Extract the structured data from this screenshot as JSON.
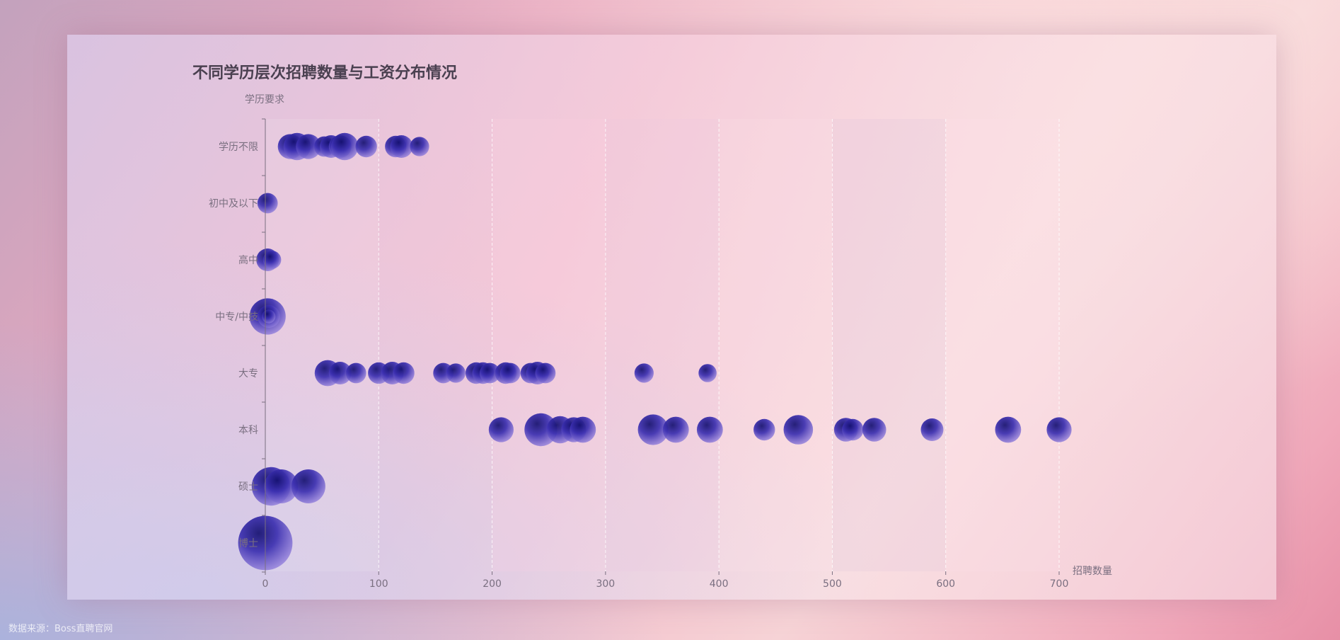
{
  "source_label": "数据来源：Boss直聘官网",
  "chart_data": {
    "type": "scatter",
    "title": "不同学历层次招聘数量与工资分布情况",
    "xlabel": "招聘数量",
    "ylabel": "学历要求",
    "xlim": [
      0,
      700
    ],
    "xticks": [
      0,
      100,
      200,
      300,
      400,
      500,
      600,
      700
    ],
    "categories": [
      "学历不限",
      "初中及以下",
      "高中",
      "中专/中技",
      "大专",
      "本科",
      "硕士",
      "博士"
    ],
    "grid": "vertical bands",
    "bubble_color": "#1e1b8f",
    "series": [
      {
        "points": [
          {
            "category": "学历不限",
            "x": 22,
            "s": 1.1
          },
          {
            "category": "学历不限",
            "x": 28,
            "s": 1.2
          },
          {
            "category": "学历不限",
            "x": 38,
            "s": 1.1
          },
          {
            "category": "学历不限",
            "x": 52,
            "s": 0.9
          },
          {
            "category": "学历不限",
            "x": 58,
            "s": 1.0
          },
          {
            "category": "学历不限",
            "x": 66,
            "s": 1.0
          },
          {
            "category": "学历不限",
            "x": 70,
            "s": 1.2
          },
          {
            "category": "学历不限",
            "x": 89,
            "s": 0.95
          },
          {
            "category": "学历不限",
            "x": 115,
            "s": 0.95
          },
          {
            "category": "学历不限",
            "x": 120,
            "s": 1.0
          },
          {
            "category": "学历不限",
            "x": 136,
            "s": 0.85
          },
          {
            "category": "初中及以下",
            "x": 2,
            "s": 0.9
          },
          {
            "category": "高中",
            "x": 2,
            "s": 1.0
          },
          {
            "category": "高中",
            "x": 6,
            "s": 0.8
          },
          {
            "category": "中专/中技",
            "x": 2,
            "s": 1.6
          },
          {
            "category": "中专/中技",
            "x": 3,
            "s": 1.0
          },
          {
            "category": "中专/中技",
            "x": 3,
            "s": 0.6
          },
          {
            "category": "大专",
            "x": 55,
            "s": 1.15
          },
          {
            "category": "大专",
            "x": 66,
            "s": 1.0
          },
          {
            "category": "大专",
            "x": 80,
            "s": 0.9
          },
          {
            "category": "大专",
            "x": 100,
            "s": 0.95
          },
          {
            "category": "大专",
            "x": 112,
            "s": 1.0
          },
          {
            "category": "大专",
            "x": 122,
            "s": 0.95
          },
          {
            "category": "大专",
            "x": 157,
            "s": 0.9
          },
          {
            "category": "大专",
            "x": 168,
            "s": 0.85
          },
          {
            "category": "大专",
            "x": 186,
            "s": 0.95
          },
          {
            "category": "大专",
            "x": 192,
            "s": 0.95
          },
          {
            "category": "大专",
            "x": 198,
            "s": 0.9
          },
          {
            "category": "大专",
            "x": 212,
            "s": 0.95
          },
          {
            "category": "大专",
            "x": 216,
            "s": 0.9
          },
          {
            "category": "大专",
            "x": 234,
            "s": 0.9
          },
          {
            "category": "大专",
            "x": 240,
            "s": 1.0
          },
          {
            "category": "大专",
            "x": 247,
            "s": 0.9
          },
          {
            "category": "大专",
            "x": 334,
            "s": 0.85
          },
          {
            "category": "大专",
            "x": 390,
            "s": 0.8
          },
          {
            "category": "本科",
            "x": 208,
            "s": 1.1
          },
          {
            "category": "本科",
            "x": 243,
            "s": 1.45
          },
          {
            "category": "本科",
            "x": 260,
            "s": 1.2
          },
          {
            "category": "本科",
            "x": 272,
            "s": 1.1
          },
          {
            "category": "本科",
            "x": 280,
            "s": 1.15
          },
          {
            "category": "本科",
            "x": 342,
            "s": 1.35
          },
          {
            "category": "本科",
            "x": 362,
            "s": 1.15
          },
          {
            "category": "本科",
            "x": 392,
            "s": 1.15
          },
          {
            "category": "本科",
            "x": 440,
            "s": 0.95
          },
          {
            "category": "本科",
            "x": 470,
            "s": 1.3
          },
          {
            "category": "本科",
            "x": 512,
            "s": 1.05
          },
          {
            "category": "本科",
            "x": 518,
            "s": 0.95
          },
          {
            "category": "本科",
            "x": 537,
            "s": 1.05
          },
          {
            "category": "本科",
            "x": 588,
            "s": 1.0
          },
          {
            "category": "本科",
            "x": 655,
            "s": 1.15
          },
          {
            "category": "本科",
            "x": 700,
            "s": 1.1
          },
          {
            "category": "硕士",
            "x": 5,
            "s": 1.7
          },
          {
            "category": "硕士",
            "x": 14,
            "s": 1.5
          },
          {
            "category": "硕士",
            "x": 38,
            "s": 1.5
          },
          {
            "category": "博士",
            "x": 0,
            "s": 2.4
          }
        ]
      }
    ]
  }
}
